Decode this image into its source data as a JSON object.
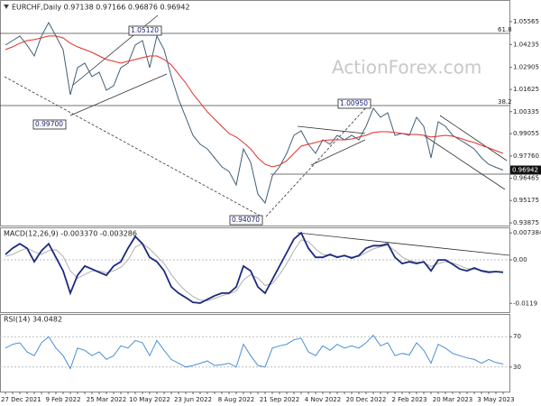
{
  "chart_data": [
    {
      "type": "line",
      "title": "EURCHF,Daily  0.97138 0.97166 0.96876 0.96942",
      "watermark": "ActionForex.com",
      "ylim": [
        0.9372,
        1.0661
      ],
      "yticks": [
        1.05565,
        1.04235,
        1.02905,
        1.01625,
        1.00335,
        0.99055,
        {
          "value": 0.9776,
          "label": "0.97760"
        },
        0.96465,
        0.95175,
        0.93875
      ],
      "last_price": 0.96942,
      "fib_labels": [
        "61.8",
        "38.2"
      ],
      "annotations": [
        "1.05120",
        "0.99700",
        "1.00950",
        "0.94070"
      ],
      "series": [
        {
          "color": "#3f5f78",
          "values": [
            1.042,
            1.0446,
            1.0473,
            1.042,
            1.0357,
            1.0473,
            1.0551,
            1.0473,
            1.0394,
            1.0132,
            1.0289,
            1.0315,
            1.0237,
            1.0263,
            1.0158,
            1.0184,
            1.0289,
            1.0315,
            1.042,
            1.0446,
            1.0289,
            1.0473,
            1.0394,
            1.0237,
            1.0106,
            1.0001,
            0.9896,
            0.9844,
            0.9817,
            0.9765,
            0.9713,
            0.9686,
            0.9608,
            0.9817,
            0.9739,
            0.9555,
            0.9503,
            0.966,
            0.9713,
            0.9791,
            0.9896,
            0.9922,
            0.9844,
            0.9791,
            0.987,
            0.9844,
            0.9896,
            0.987,
            0.9896,
            0.987,
            0.9948,
            1.0053,
            1.0001,
            1.0027,
            0.9896,
            0.9907,
            0.9896,
            1.0001,
            0.9948,
            0.9765,
            0.9975,
            0.9948,
            0.9896,
            0.987,
            0.9844,
            0.9817,
            0.9765,
            0.9728,
            0.971,
            0.9694
          ]
        },
        {
          "color": "#e0302a",
          "values": [
            1.0394,
            1.041,
            1.0431,
            1.0446,
            1.0452,
            1.0462,
            1.0473,
            1.0473,
            1.0462,
            1.0431,
            1.041,
            1.0394,
            1.0378,
            1.0357,
            1.0336,
            1.0326,
            1.0315,
            1.0326,
            1.0336,
            1.0347,
            1.0357,
            1.0357,
            1.0336,
            1.0305,
            1.0253,
            1.02,
            1.0137,
            1.0085,
            1.0032,
            0.999,
            0.9948,
            0.9907,
            0.9886,
            0.9854,
            0.9817,
            0.9765,
            0.9728,
            0.9713,
            0.9723,
            0.9749,
            0.9791,
            0.9833,
            0.9844,
            0.9854,
            0.9865,
            0.987,
            0.987,
            0.987,
            0.9875,
            0.9886,
            0.9896,
            0.9912,
            0.9917,
            0.9917,
            0.9912,
            0.9907,
            0.9901,
            0.9901,
            0.9896,
            0.9886,
            0.9891,
            0.9896,
            0.9891,
            0.988,
            0.9865,
            0.9854,
            0.9838,
            0.9823,
            0.9807,
            0.9791
          ]
        }
      ]
    },
    {
      "type": "line",
      "title": "MACD(12,26,9) -0.003370 -0.003286",
      "ylim": [
        -0.0143,
        0.0089
      ],
      "yticks": [
        0.007384,
        {
          "value": 0,
          "label": "0.00"
        },
        -0.0119
      ],
      "series": [
        {
          "color": "#b0b0b0",
          "values": [
            0.001,
            0.0015,
            0.0025,
            0.0032,
            0.0022,
            0.0015,
            0.0025,
            0.0028,
            0.001,
            -0.003,
            -0.005,
            -0.004,
            -0.003,
            -0.003,
            -0.0035,
            -0.003,
            -0.002,
            0.0,
            0.0035,
            0.0045,
            0.003,
            0.001,
            -0.001,
            -0.004,
            -0.0065,
            -0.0085,
            -0.01,
            -0.011,
            -0.0112,
            -0.0105,
            -0.0098,
            -0.0093,
            -0.0085,
            -0.0055,
            -0.004,
            -0.005,
            -0.007,
            -0.0065,
            -0.004,
            -0.001,
            0.0025,
            0.0055,
            0.005,
            0.003,
            0.0015,
            0.0012,
            0.001,
            0.001,
            0.0008,
            0.0009,
            0.002,
            0.003,
            0.0036,
            0.004,
            0.0025,
            0.0008,
            -0.0002,
            -0.0006,
            -0.0007,
            -0.0018,
            -0.001,
            -0.0005,
            -0.0008,
            -0.0016,
            -0.0024,
            -0.0025,
            -0.0028,
            -0.0031,
            -0.0032,
            -0.0033
          ]
        },
        {
          "color": "#1c2a80",
          "values": [
            0.0015,
            0.0032,
            0.0044,
            0.0032,
            -0.0005,
            0.0025,
            0.0044,
            0.0007,
            -0.003,
            -0.0091,
            -0.0042,
            -0.0017,
            -0.0025,
            -0.0034,
            -0.0042,
            -0.0017,
            -0.0005,
            0.0032,
            0.0064,
            0.0044,
            0.0007,
            -0.0005,
            -0.003,
            -0.0074,
            -0.0091,
            -0.0103,
            -0.0116,
            -0.0118,
            -0.0108,
            -0.0098,
            -0.0091,
            -0.0091,
            -0.0074,
            -0.0017,
            -0.003,
            -0.0074,
            -0.0091,
            -0.0054,
            -0.0017,
            0.002,
            0.0057,
            0.0074,
            0.0032,
            0.0007,
            0.0007,
            0.0015,
            0.0007,
            0.0012,
            0.0005,
            0.0012,
            0.0032,
            0.0039,
            0.0039,
            0.0044,
            0.0007,
            -0.001,
            -0.0005,
            -0.001,
            -0.0005,
            -0.003,
            0,
            0,
            -0.0012,
            -0.0025,
            -0.003,
            -0.0022,
            -0.003,
            -0.0034,
            -0.0032,
            -0.0034
          ]
        }
      ]
    },
    {
      "type": "line",
      "title": "RSI(14) 34.0482",
      "ylim": [
        0,
        100
      ],
      "yticks": [
        70,
        30
      ],
      "categories": [
        null,
        null,
        "27 Dec 2021",
        null,
        null,
        null,
        null,
        null,
        "9 Feb 2022",
        null,
        null,
        null,
        null,
        null,
        "25 Mar 2022",
        null,
        null,
        null,
        null,
        null,
        "10 May 2022",
        null,
        null,
        null,
        null,
        null,
        "23 Jun 2022",
        null,
        null,
        null,
        null,
        null,
        "8 Aug 2022",
        null,
        null,
        null,
        null,
        null,
        "21 Sep 2022",
        null,
        null,
        null,
        null,
        null,
        "4 Nov 2022",
        null,
        null,
        null,
        null,
        null,
        "20 Dec 2022",
        null,
        null,
        null,
        null,
        null,
        "2 Feb 2023",
        null,
        null,
        null,
        null,
        null,
        "20 Mar 2023",
        null,
        null,
        null,
        null,
        null,
        "3 May 2023",
        null
      ],
      "series": [
        {
          "color": "#4a8fd8",
          "values": [
            55,
            60,
            62,
            50,
            45,
            62,
            70,
            55,
            45,
            28,
            55,
            52,
            45,
            50,
            40,
            45,
            58,
            55,
            65,
            62,
            45,
            65,
            52,
            40,
            35,
            30,
            32,
            35,
            38,
            32,
            33,
            35,
            30,
            60,
            45,
            32,
            30,
            55,
            58,
            60,
            66,
            68,
            50,
            45,
            58,
            52,
            60,
            55,
            58,
            55,
            62,
            72,
            58,
            62,
            45,
            48,
            46,
            62,
            52,
            35,
            60,
            55,
            48,
            45,
            42,
            40,
            35,
            40,
            36,
            34
          ]
        }
      ]
    }
  ]
}
